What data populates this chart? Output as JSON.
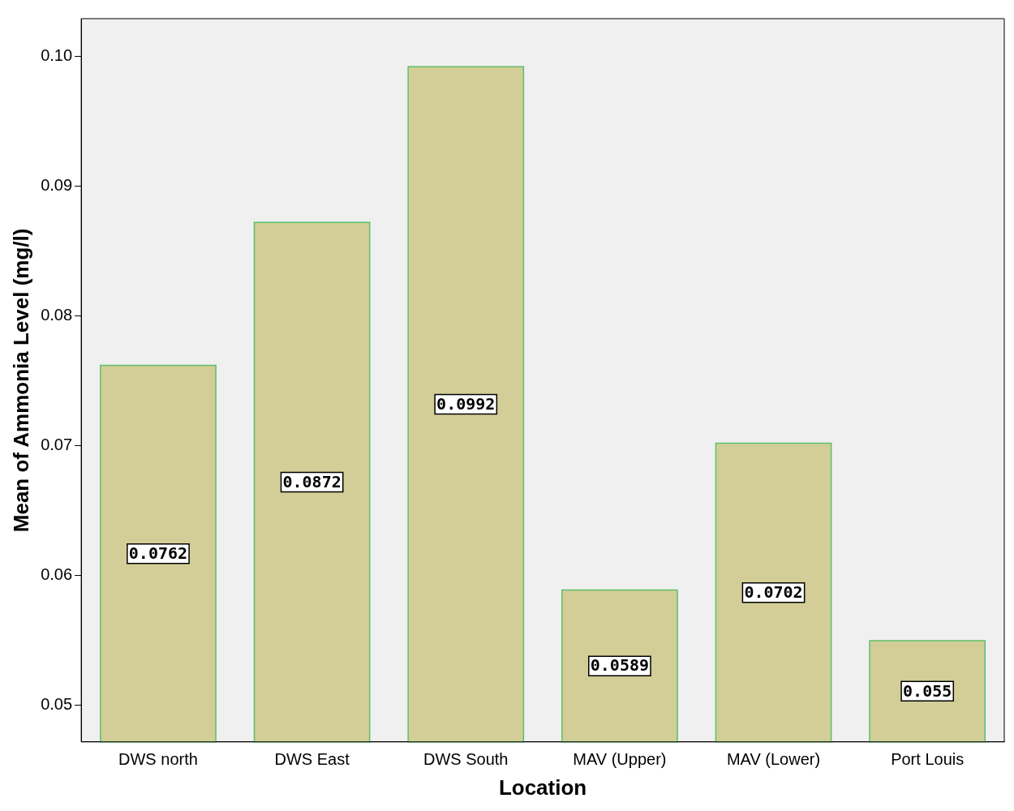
{
  "chart_data": {
    "type": "bar",
    "xlabel": "Location",
    "ylabel": "Mean of Ammonia Level (mg/l)",
    "categories": [
      "DWS north",
      "DWS East",
      "DWS South",
      "MAV (Upper)",
      "MAV (Lower)",
      "Port Louis"
    ],
    "values": [
      0.0762,
      0.0872,
      0.0992,
      0.0589,
      0.0702,
      0.055
    ],
    "color": "#d3ce97",
    "ylim": [
      0.0472,
      0.1029
    ],
    "yticks": [
      0.05,
      0.06,
      0.07,
      0.08,
      0.09,
      {
        "value": 0.1,
        "label": "0.10"
      }
    ],
    "data_labels": true,
    "grid": false,
    "legend": false
  }
}
